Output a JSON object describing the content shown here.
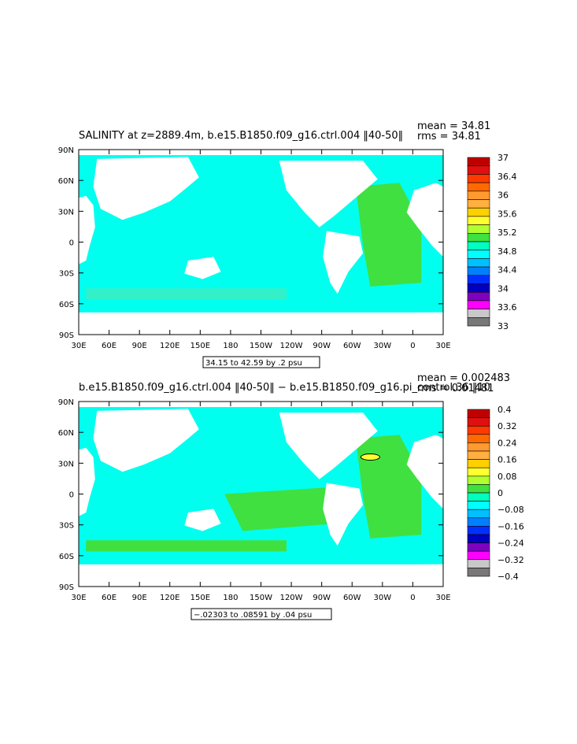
{
  "chart_data": [
    {
      "type": "heatmap",
      "title": "SALINITY at z=2889.4m, b.e15.B1850.f09_g16.ctrl.004 ‖40-50‖",
      "stats": {
        "mean": "mean = 34.81",
        "rms": "rms = 34.81"
      },
      "x_tick_labels": [
        "30E",
        "60E",
        "90E",
        "120E",
        "150E",
        "180",
        "150W",
        "120W",
        "90W",
        "60W",
        "30W",
        "0",
        "30E"
      ],
      "y_tick_labels": [
        "90N",
        "60N",
        "30N",
        "0",
        "30S",
        "60S",
        "90S"
      ],
      "colorbar": {
        "labels": [
          "37",
          "36.4",
          "36",
          "35.6",
          "35.2",
          "34.8",
          "34.4",
          "34",
          "33.6",
          "33"
        ],
        "colors": [
          "#c00000",
          "#e01010",
          "#ff3a00",
          "#ff6a00",
          "#ff9a30",
          "#ffb040",
          "#ffd000",
          "#ffff30",
          "#b0ff30",
          "#40e040",
          "#00ffc0",
          "#00ffff",
          "#00c0ff",
          "#0080ff",
          "#0030ff",
          "#0000c0",
          "#8000c0",
          "#ff00ff",
          "#c8c8c8",
          "#787878"
        ]
      },
      "range_note": "34.15 to 42.59 by .2 psu",
      "dominant_field": "#00ffee",
      "atlantic_field": "#40e040"
    },
    {
      "type": "heatmap",
      "title": "b.e15.B1850.f09_g16.ctrl.004 ‖40-50‖ − b.e15.B1850.f09_g16.pi_control.36 ‖10",
      "stats": {
        "mean": "mean = 0.002483",
        "rms": "rms = 0.01481"
      },
      "x_tick_labels": [
        "30E",
        "60E",
        "90E",
        "120E",
        "150E",
        "180",
        "150W",
        "120W",
        "90W",
        "60W",
        "30W",
        "0",
        "30E"
      ],
      "y_tick_labels": [
        "90N",
        "60N",
        "30N",
        "0",
        "30S",
        "60S",
        "90S"
      ],
      "colorbar": {
        "labels": [
          "0.4",
          "0.32",
          "0.24",
          "0.16",
          "0.08",
          "0",
          "−0.08",
          "−0.16",
          "−0.24",
          "−0.32",
          "−0.4"
        ],
        "colors": [
          "#c00000",
          "#e01010",
          "#ff3a00",
          "#ff6a00",
          "#ff9a30",
          "#ffb040",
          "#ffd000",
          "#ffff30",
          "#b0ff30",
          "#40e040",
          "#00ffc0",
          "#00ffff",
          "#00c0ff",
          "#0080ff",
          "#0030ff",
          "#0000c0",
          "#8000c0",
          "#ff00ff",
          "#c8c8c8",
          "#787878"
        ]
      },
      "range_note": "−.02303 to .08591 by .04 psu",
      "dominant_field": "#00ffee",
      "atlantic_field": "#40e040"
    }
  ]
}
